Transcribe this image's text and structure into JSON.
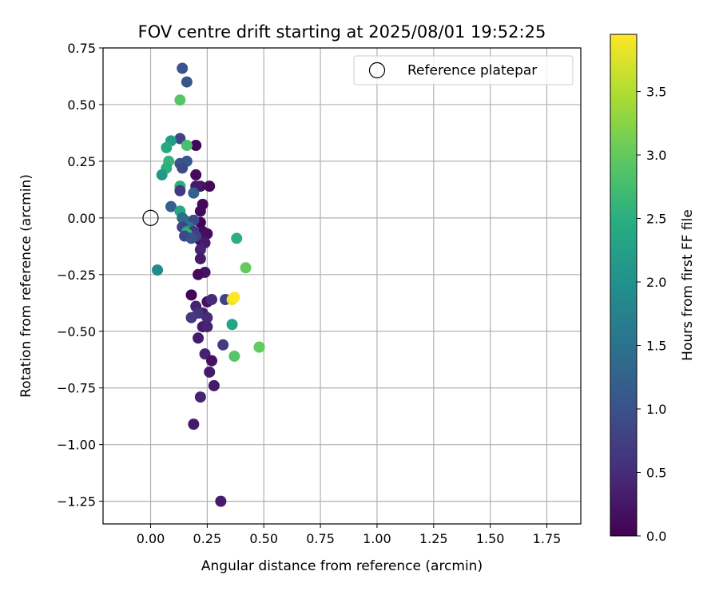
{
  "chart_data": {
    "type": "scatter",
    "title": "FOV centre drift starting at 2025/08/01 19:52:25",
    "xlabel": "Angular distance from reference (arcmin)",
    "ylabel": "Rotation from reference (arcmin)",
    "xlim": [
      -0.21,
      1.9
    ],
    "ylim": [
      -1.35,
      0.75
    ],
    "xticks": [
      "0.00",
      "0.25",
      "0.50",
      "0.75",
      "1.00",
      "1.25",
      "1.50",
      "1.75"
    ],
    "xtick_values": [
      0,
      0.25,
      0.5,
      0.75,
      1.0,
      1.25,
      1.5,
      1.75
    ],
    "yticks": [
      "0.75",
      "0.50",
      "0.25",
      "0.00",
      "−0.25",
      "−0.50",
      "−0.75",
      "−1.00",
      "−1.25"
    ],
    "ytick_values": [
      0.75,
      0.5,
      0.25,
      0,
      -0.25,
      -0.5,
      -0.75,
      -1.0,
      -1.25
    ],
    "grid": true,
    "legend": {
      "position": "top-right",
      "entries": [
        "Reference platepar"
      ]
    },
    "reference_point": {
      "x": 0,
      "y": 0
    },
    "colorbar": {
      "label": "Hours from first FF file",
      "range": [
        0,
        3.95
      ],
      "ticks": [
        "0.0",
        "0.5",
        "1.0",
        "1.5",
        "2.0",
        "2.5",
        "3.0",
        "3.5"
      ],
      "tick_values": [
        0,
        0.5,
        1.0,
        1.5,
        2.0,
        2.5,
        3.0,
        3.5
      ],
      "colormap": "viridis"
    },
    "points": [
      {
        "x": 0.2,
        "y": 0.32,
        "h": 0.05
      },
      {
        "x": 0.2,
        "y": 0.19,
        "h": 0.1
      },
      {
        "x": 0.26,
        "y": 0.14,
        "h": 0.1
      },
      {
        "x": 0.22,
        "y": 0.14,
        "h": 0.2
      },
      {
        "x": 0.2,
        "y": 0.14,
        "h": 0.3
      },
      {
        "x": 0.23,
        "y": 0.06,
        "h": 0.1
      },
      {
        "x": 0.22,
        "y": 0.03,
        "h": 0.1
      },
      {
        "x": 0.22,
        "y": -0.02,
        "h": 0.05
      },
      {
        "x": 0.23,
        "y": -0.06,
        "h": 0.1
      },
      {
        "x": 0.25,
        "y": -0.07,
        "h": 0.15
      },
      {
        "x": 0.22,
        "y": -0.1,
        "h": 0.2
      },
      {
        "x": 0.24,
        "y": -0.11,
        "h": 0.3
      },
      {
        "x": 0.22,
        "y": -0.14,
        "h": 0.4
      },
      {
        "x": 0.22,
        "y": -0.18,
        "h": 0.3
      },
      {
        "x": 0.24,
        "y": -0.24,
        "h": 0.2
      },
      {
        "x": 0.21,
        "y": -0.25,
        "h": 0.1
      },
      {
        "x": 0.18,
        "y": -0.34,
        "h": 0.05
      },
      {
        "x": 0.25,
        "y": -0.37,
        "h": 0.2
      },
      {
        "x": 0.27,
        "y": -0.36,
        "h": 0.5
      },
      {
        "x": 0.2,
        "y": -0.39,
        "h": 0.4
      },
      {
        "x": 0.23,
        "y": -0.42,
        "h": 0.3
      },
      {
        "x": 0.21,
        "y": -0.42,
        "h": 0.6
      },
      {
        "x": 0.18,
        "y": -0.44,
        "h": 0.7
      },
      {
        "x": 0.25,
        "y": -0.44,
        "h": 0.5
      },
      {
        "x": 0.23,
        "y": -0.48,
        "h": 0.3
      },
      {
        "x": 0.25,
        "y": -0.48,
        "h": 0.4
      },
      {
        "x": 0.21,
        "y": -0.53,
        "h": 0.3
      },
      {
        "x": 0.24,
        "y": -0.6,
        "h": 0.4
      },
      {
        "x": 0.27,
        "y": -0.63,
        "h": 0.2
      },
      {
        "x": 0.26,
        "y": -0.68,
        "h": 0.3
      },
      {
        "x": 0.28,
        "y": -0.74,
        "h": 0.3
      },
      {
        "x": 0.22,
        "y": -0.79,
        "h": 0.4
      },
      {
        "x": 0.19,
        "y": -0.91,
        "h": 0.3
      },
      {
        "x": 0.31,
        "y": -1.25,
        "h": 0.3
      },
      {
        "x": 0.32,
        "y": -0.56,
        "h": 0.7
      },
      {
        "x": 0.33,
        "y": -0.36,
        "h": 0.8
      },
      {
        "x": 0.14,
        "y": 0.66,
        "h": 1.05
      },
      {
        "x": 0.16,
        "y": 0.6,
        "h": 1.05
      },
      {
        "x": 0.13,
        "y": 0.52,
        "h": 2.9
      },
      {
        "x": 0.13,
        "y": 0.35,
        "h": 0.8
      },
      {
        "x": 0.16,
        "y": 0.32,
        "h": 2.8
      },
      {
        "x": 0.09,
        "y": 0.34,
        "h": 2.2
      },
      {
        "x": 0.07,
        "y": 0.31,
        "h": 2.4
      },
      {
        "x": 0.16,
        "y": 0.25,
        "h": 1.1
      },
      {
        "x": 0.13,
        "y": 0.24,
        "h": 1.0
      },
      {
        "x": 0.14,
        "y": 0.22,
        "h": 0.9
      },
      {
        "x": 0.08,
        "y": 0.25,
        "h": 2.6
      },
      {
        "x": 0.07,
        "y": 0.22,
        "h": 2.5
      },
      {
        "x": 0.05,
        "y": 0.19,
        "h": 2.1
      },
      {
        "x": 0.13,
        "y": 0.14,
        "h": 2.5
      },
      {
        "x": 0.13,
        "y": 0.12,
        "h": 0.7
      },
      {
        "x": 0.19,
        "y": 0.11,
        "h": 1.2
      },
      {
        "x": 0.09,
        "y": 0.05,
        "h": 1.2
      },
      {
        "x": 0.13,
        "y": 0.03,
        "h": 2.4
      },
      {
        "x": 0.15,
        "y": -0.01,
        "h": 1.8
      },
      {
        "x": 0.14,
        "y": 0.0,
        "h": 1.4
      },
      {
        "x": 0.19,
        "y": -0.01,
        "h": 0.9
      },
      {
        "x": 0.17,
        "y": -0.04,
        "h": 1.6
      },
      {
        "x": 0.14,
        "y": -0.04,
        "h": 0.8
      },
      {
        "x": 0.16,
        "y": -0.06,
        "h": 2.2
      },
      {
        "x": 0.19,
        "y": -0.06,
        "h": 0.7
      },
      {
        "x": 0.16,
        "y": -0.07,
        "h": 2.6
      },
      {
        "x": 0.15,
        "y": -0.08,
        "h": 0.9
      },
      {
        "x": 0.2,
        "y": -0.08,
        "h": 0.8
      },
      {
        "x": 0.18,
        "y": -0.09,
        "h": 1.0
      },
      {
        "x": 0.03,
        "y": -0.23,
        "h": 1.9
      },
      {
        "x": 0.38,
        "y": -0.09,
        "h": 2.5
      },
      {
        "x": 0.42,
        "y": -0.22,
        "h": 3.0
      },
      {
        "x": 0.36,
        "y": -0.36,
        "h": 3.8
      },
      {
        "x": 0.37,
        "y": -0.35,
        "h": 3.95
      },
      {
        "x": 0.36,
        "y": -0.47,
        "h": 2.3
      },
      {
        "x": 0.48,
        "y": -0.57,
        "h": 3.3
      },
      {
        "x": 0.48,
        "y": -0.57,
        "h": 3.0
      },
      {
        "x": 0.37,
        "y": -0.61,
        "h": 2.9
      }
    ]
  }
}
